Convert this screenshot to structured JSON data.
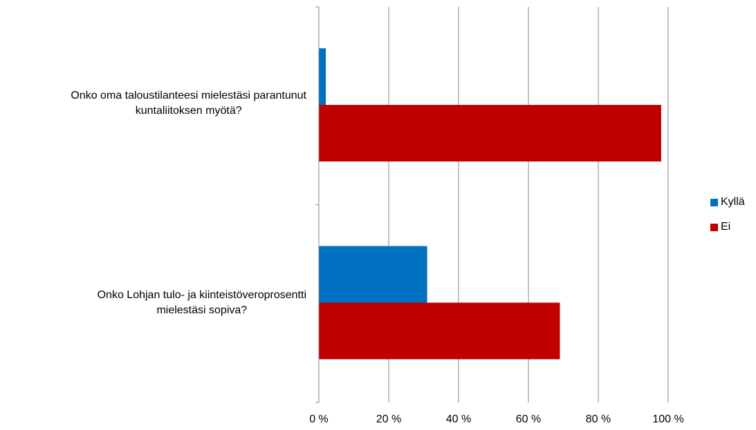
{
  "chart_data": {
    "type": "bar",
    "orientation": "horizontal",
    "categories": [
      "Onko oma taloustilanteesi mielestäsi parantunut kuntaliitoksen myötä?",
      "Onko Lohjan tulo- ja kiinteistöveroprosentti mielestäsi sopiva?"
    ],
    "category_lines": [
      [
        "Onko oma taloustilanteesi mielestäsi parantunut",
        "kuntaliitoksen myötä?"
      ],
      [
        "Onko Lohjan tulo- ja kiinteistöveroprosentti",
        "mielestäsi sopiva?"
      ]
    ],
    "series": [
      {
        "name": "Kyllä",
        "color": "#0070C0",
        "values": [
          2,
          31
        ]
      },
      {
        "name": "Ei",
        "color": "#C00000",
        "values": [
          98,
          69
        ]
      }
    ],
    "xlim": [
      0,
      100
    ],
    "x_ticks": [
      "0 %",
      "20 %",
      "40 %",
      "60 %",
      "80 %",
      "100 %"
    ],
    "grid": true,
    "legend_position": "right"
  }
}
